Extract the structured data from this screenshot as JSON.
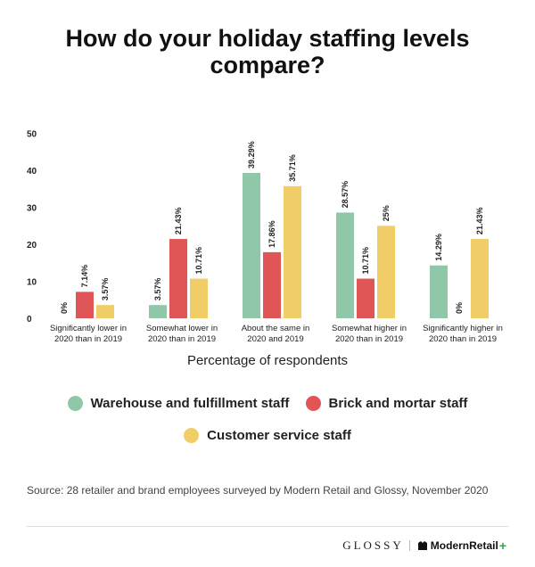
{
  "title_lines": [
    "How do your holiday staffing levels",
    "compare?"
  ],
  "colors": {
    "warehouse": "#8fc7a8",
    "brick": "#e05555",
    "customer": "#f0cd66",
    "plus": "#2ba84a"
  },
  "chart_data": {
    "type": "bar",
    "title": "How do your holiday staffing levels compare?",
    "xlabel": "Percentage of respondents",
    "ylabel": "",
    "ylim": [
      0,
      50
    ],
    "yticks": [
      0,
      10,
      20,
      30,
      40,
      50
    ],
    "grid": false,
    "legend_position": "bottom",
    "categories": [
      [
        "Significantly lower in",
        "2020 than in 2019"
      ],
      [
        "Somewhat lower in",
        "2020 than in 2019"
      ],
      [
        "About the same in",
        "2020 and 2019"
      ],
      [
        "Somewhat higher in",
        "2020 than in 2019"
      ],
      [
        "Significantly higher in",
        "2020 than in 2019"
      ]
    ],
    "series": [
      {
        "name": "Warehouse and fulfillment staff",
        "color": "#8fc7a8",
        "values": [
          0,
          3.57,
          39.29,
          28.57,
          14.29
        ],
        "labels": [
          "0%",
          "3.57%",
          "39.29%",
          "28.57%",
          "14.29%"
        ]
      },
      {
        "name": "Brick and mortar staff",
        "color": "#e05555",
        "values": [
          7.14,
          21.43,
          17.86,
          10.71,
          0
        ],
        "labels": [
          "7.14%",
          "21.43%",
          "17.86%",
          "10.71%",
          "0%"
        ]
      },
      {
        "name": "Customer service staff",
        "color": "#f0cd66",
        "values": [
          3.57,
          10.71,
          35.71,
          25,
          21.43
        ],
        "labels": [
          "3.57%",
          "10.71%",
          "35.71%",
          "25%",
          "21.43%"
        ]
      }
    ]
  },
  "legend": {
    "warehouse": "Warehouse and fulfillment staff",
    "brick": "Brick and mortar staff",
    "customer": "Customer service staff"
  },
  "source": "Source: 28 retailer and brand employees surveyed by Modern Retail and Glossy, November 2020",
  "footer": {
    "glossy": "GLOSSY",
    "modern_retail": "ModernRetail",
    "plus": "+"
  }
}
